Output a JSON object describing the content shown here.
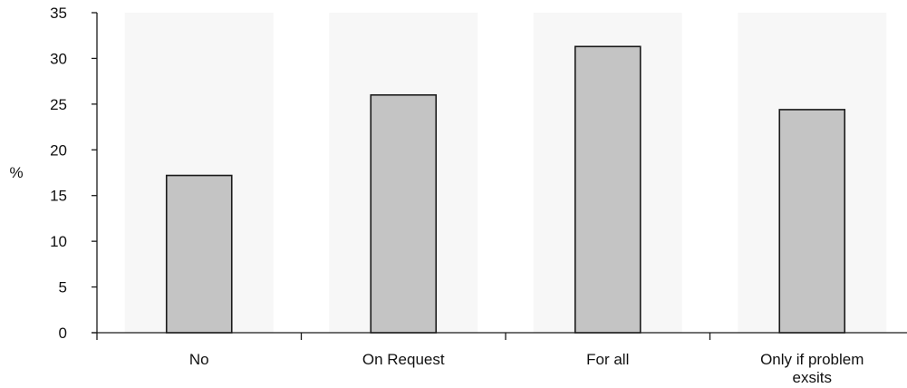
{
  "chart_data": {
    "type": "bar",
    "title": "",
    "xlabel": "",
    "ylabel": "%",
    "categories": [
      [
        "No"
      ],
      [
        "On Request"
      ],
      [
        "For all"
      ],
      [
        "Only if problem",
        "exsits"
      ]
    ],
    "values": [
      17.2,
      26.0,
      31.3,
      24.4
    ],
    "ylim": [
      0,
      35
    ],
    "yticks": [
      0,
      5,
      10,
      15,
      20,
      25,
      30,
      35
    ],
    "grid": false,
    "legend": "none",
    "colors": {
      "bar_fill": "#c4c4c4",
      "bar_stroke": "#1a1a1a",
      "axis": "#1a1a1a",
      "band": "#f7f7f7"
    }
  }
}
